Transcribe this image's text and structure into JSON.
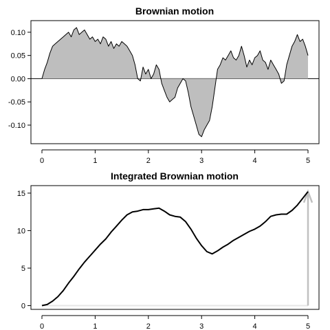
{
  "chart_data": [
    {
      "type": "area",
      "title": "Brownian motion",
      "xlabel": "",
      "ylabel": "",
      "xlim": [
        0,
        5
      ],
      "ylim": [
        -0.14,
        0.125
      ],
      "x_ticks": [
        0,
        1,
        2,
        3,
        4,
        5
      ],
      "x_tick_labels": [
        "0",
        "1",
        "2",
        "3",
        "4",
        "5"
      ],
      "y_ticks": [
        0.1,
        0.05,
        0.0,
        -0.05,
        -0.1
      ],
      "y_tick_labels": [
        "0.10",
        "0.05",
        "0.00",
        "-0.05",
        "-0.10"
      ],
      "baseline": 0,
      "fill_color": "#bebebe",
      "line_color": "#000000",
      "grid": false,
      "x": [
        0,
        0.05,
        0.1,
        0.15,
        0.2,
        0.25,
        0.3,
        0.35,
        0.4,
        0.45,
        0.5,
        0.55,
        0.6,
        0.65,
        0.7,
        0.75,
        0.8,
        0.85,
        0.9,
        0.95,
        1.0,
        1.05,
        1.1,
        1.15,
        1.2,
        1.25,
        1.3,
        1.35,
        1.4,
        1.45,
        1.5,
        1.55,
        1.6,
        1.65,
        1.7,
        1.75,
        1.8,
        1.85,
        1.9,
        1.95,
        2.0,
        2.05,
        2.1,
        2.15,
        2.2,
        2.25,
        2.3,
        2.35,
        2.4,
        2.45,
        2.5,
        2.55,
        2.6,
        2.65,
        2.7,
        2.75,
        2.8,
        2.85,
        2.9,
        2.95,
        3.0,
        3.05,
        3.1,
        3.15,
        3.2,
        3.25,
        3.3,
        3.35,
        3.4,
        3.45,
        3.5,
        3.55,
        3.6,
        3.65,
        3.7,
        3.75,
        3.8,
        3.85,
        3.9,
        3.95,
        4.0,
        4.05,
        4.1,
        4.15,
        4.2,
        4.25,
        4.3,
        4.35,
        4.4,
        4.45,
        4.5,
        4.55,
        4.6,
        4.65,
        4.7,
        4.75,
        4.8,
        4.85,
        4.9,
        4.95,
        5.0
      ],
      "y": [
        0.0,
        0.02,
        0.035,
        0.055,
        0.07,
        0.075,
        0.08,
        0.085,
        0.09,
        0.095,
        0.1,
        0.09,
        0.105,
        0.11,
        0.095,
        0.1,
        0.105,
        0.095,
        0.085,
        0.09,
        0.08,
        0.085,
        0.075,
        0.09,
        0.085,
        0.07,
        0.08,
        0.065,
        0.075,
        0.07,
        0.08,
        0.075,
        0.07,
        0.06,
        0.05,
        0.03,
        0.0,
        -0.005,
        0.025,
        0.01,
        0.02,
        0.0,
        0.01,
        0.03,
        0.02,
        -0.01,
        -0.025,
        -0.04,
        -0.05,
        -0.045,
        -0.04,
        -0.02,
        -0.01,
        0.0,
        -0.005,
        -0.03,
        -0.06,
        -0.08,
        -0.1,
        -0.12,
        -0.125,
        -0.11,
        -0.1,
        -0.09,
        -0.06,
        -0.02,
        0.02,
        0.03,
        0.045,
        0.04,
        0.05,
        0.06,
        0.045,
        0.04,
        0.05,
        0.07,
        0.05,
        0.025,
        0.04,
        0.03,
        0.045,
        0.05,
        0.06,
        0.04,
        0.035,
        0.02,
        0.04,
        0.03,
        0.02,
        0.01,
        -0.01,
        -0.005,
        0.03,
        0.05,
        0.07,
        0.08,
        0.095,
        0.08,
        0.085,
        0.07,
        0.05
      ]
    },
    {
      "type": "line",
      "title": "Integrated Brownian motion",
      "xlabel": "",
      "ylabel": "",
      "xlim": [
        0,
        5
      ],
      "ylim": [
        -0.5,
        16
      ],
      "x_ticks": [
        0,
        1,
        2,
        3,
        4,
        5
      ],
      "x_tick_labels": [
        "0",
        "1",
        "2",
        "3",
        "4",
        "5"
      ],
      "y_ticks": [
        0,
        5,
        10,
        15
      ],
      "y_tick_labels": [
        "0",
        "5",
        "10",
        "15"
      ],
      "baseline": 0,
      "baseline_color": "#e6e6e6",
      "line_color": "#000000",
      "arrow": {
        "x": 5,
        "y0": 0,
        "y1": 15.2,
        "color": "#c0c0c0"
      },
      "grid": false,
      "x": [
        0,
        0.1,
        0.2,
        0.3,
        0.4,
        0.5,
        0.6,
        0.7,
        0.8,
        0.9,
        1.0,
        1.1,
        1.2,
        1.3,
        1.4,
        1.5,
        1.6,
        1.7,
        1.8,
        1.9,
        2.0,
        2.1,
        2.2,
        2.3,
        2.4,
        2.5,
        2.6,
        2.7,
        2.8,
        2.9,
        3.0,
        3.1,
        3.2,
        3.3,
        3.4,
        3.5,
        3.6,
        3.7,
        3.8,
        3.9,
        4.0,
        4.1,
        4.2,
        4.3,
        4.4,
        4.5,
        4.6,
        4.7,
        4.8,
        4.9,
        5.0
      ],
      "y": [
        0.0,
        0.15,
        0.6,
        1.2,
        2.0,
        3.0,
        3.9,
        4.9,
        5.8,
        6.6,
        7.4,
        8.2,
        8.9,
        9.8,
        10.6,
        11.4,
        12.1,
        12.5,
        12.6,
        12.8,
        12.8,
        12.9,
        13.0,
        12.6,
        12.1,
        11.9,
        11.8,
        11.2,
        10.2,
        9.0,
        8.0,
        7.2,
        6.9,
        7.3,
        7.8,
        8.2,
        8.7,
        9.1,
        9.5,
        9.9,
        10.2,
        10.6,
        11.2,
        11.9,
        12.1,
        12.2,
        12.2,
        12.7,
        13.4,
        14.3,
        15.2
      ]
    }
  ]
}
